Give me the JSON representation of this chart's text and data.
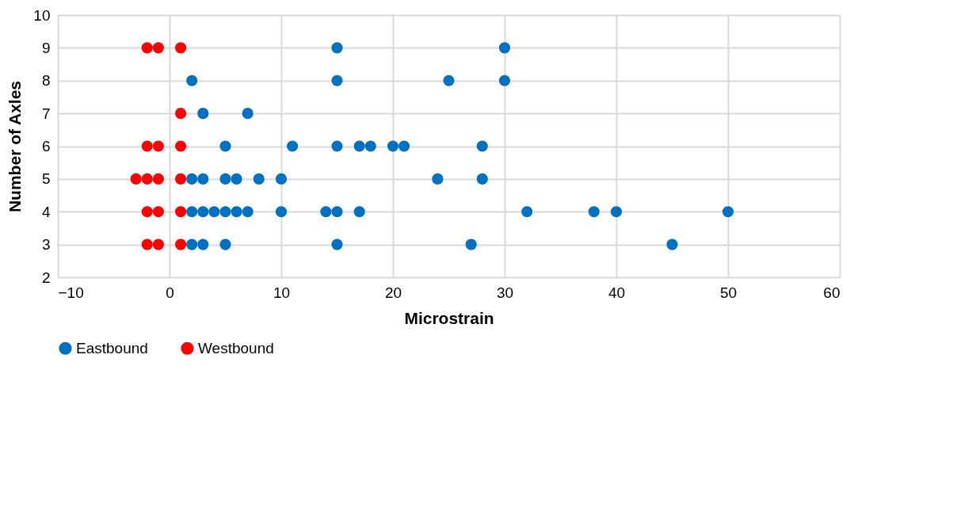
{
  "chart_data": {
    "type": "scatter",
    "xlabel": "Microstrain",
    "ylabel": "Number of Axles",
    "xlim": [
      -10,
      60
    ],
    "xticks": [
      -10,
      0,
      10,
      20,
      30,
      40,
      50,
      60
    ],
    "ylim": [
      2,
      10
    ],
    "yticks": [
      2,
      3,
      4,
      5,
      6,
      7,
      8,
      9,
      10
    ],
    "grid": true,
    "legend": "bottom",
    "marker": "circle",
    "series": [
      {
        "name": "Eastbound",
        "color": "#0070c0",
        "x": [
          15,
          30,
          2,
          15,
          25,
          30,
          3,
          7,
          5,
          11,
          15,
          17,
          18,
          20,
          21,
          28,
          2,
          3,
          5,
          6,
          8,
          10,
          24,
          28,
          2,
          3,
          4,
          5,
          6,
          7,
          10,
          14,
          15,
          17,
          32,
          38,
          40,
          50,
          2,
          3,
          5,
          15,
          27,
          45
        ],
        "values": [
          9,
          9,
          8,
          8,
          8,
          8,
          7,
          7,
          6,
          6,
          6,
          6,
          6,
          6,
          6,
          6,
          5,
          5,
          5,
          5,
          5,
          5,
          5,
          5,
          4,
          4,
          4,
          4,
          4,
          4,
          4,
          4,
          4,
          4,
          4,
          4,
          4,
          4,
          3,
          3,
          3,
          3,
          3,
          3
        ]
      },
      {
        "name": "Westbound",
        "color": "#ff0000",
        "x": [
          -2,
          -1,
          1,
          1,
          -2,
          -1,
          1,
          -3,
          -2,
          -1,
          1,
          -2,
          -1,
          1,
          -2,
          -1,
          1
        ],
        "values": [
          9,
          9,
          9,
          7,
          6,
          6,
          6,
          5,
          5,
          5,
          5,
          4,
          4,
          4,
          3,
          3,
          3
        ]
      }
    ]
  }
}
